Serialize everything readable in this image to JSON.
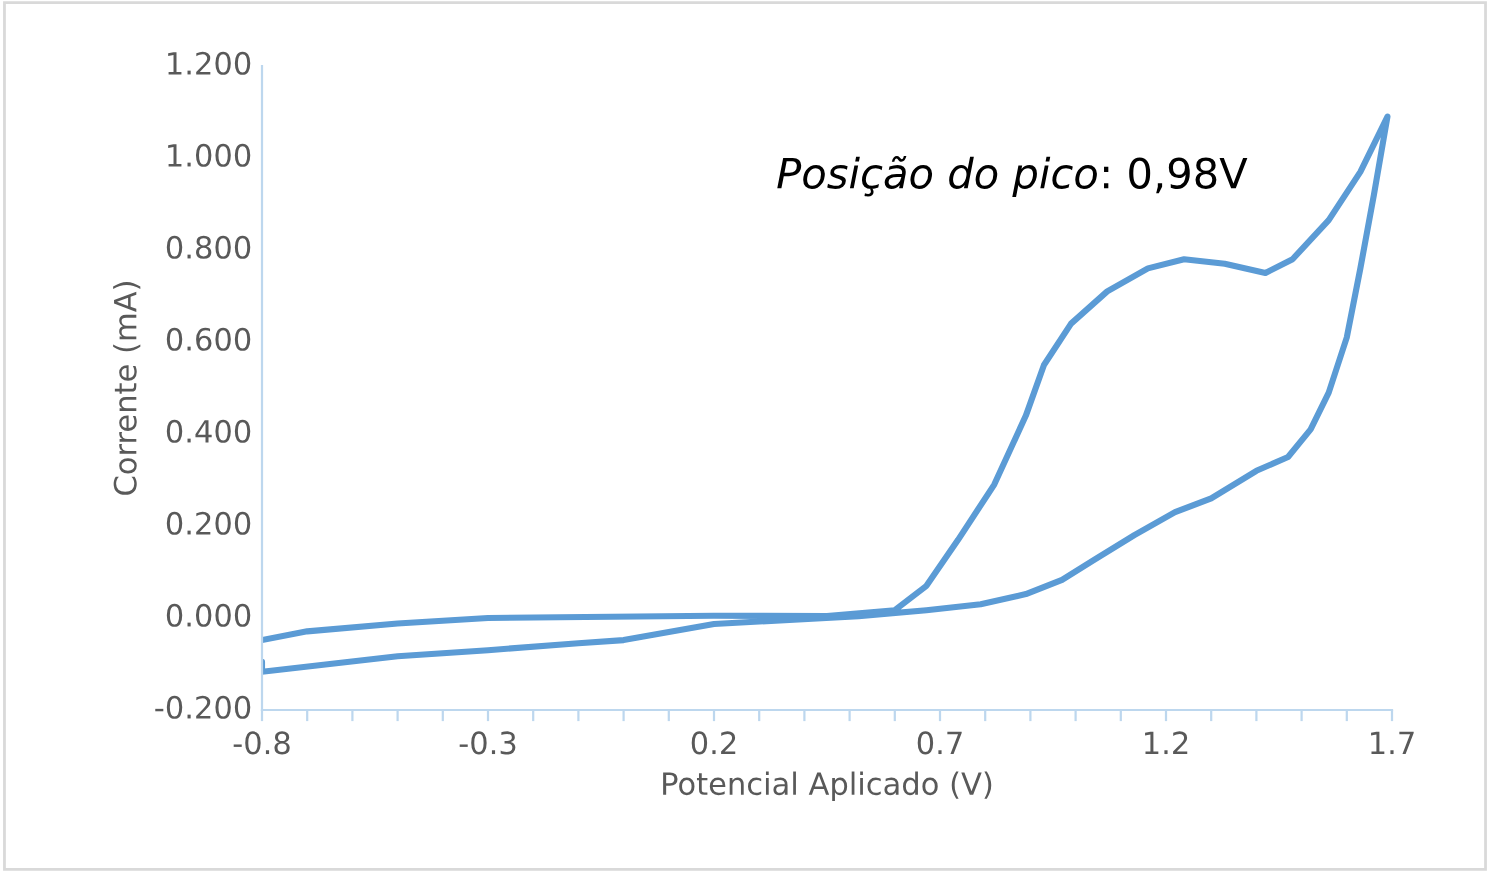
{
  "chart_data": {
    "type": "line",
    "xlabel": "Potencial Aplicado (V)",
    "ylabel": "Corrente (mA)",
    "annotations": [
      "Posição do pico: 0,98V"
    ],
    "xlim": [
      -0.8,
      1.7
    ],
    "xticks": [
      -0.8,
      {
        "value": -0.7,
        "label": null
      },
      {
        "value": -0.6,
        "label": null
      },
      {
        "value": -0.5,
        "label": null
      },
      {
        "value": -0.4,
        "label": null
      },
      -0.3,
      {
        "value": -0.2,
        "label": null
      },
      {
        "value": -0.1,
        "label": null
      },
      {
        "value": 0.0,
        "label": null
      },
      {
        "value": 0.1,
        "label": null
      },
      0.2,
      {
        "value": 0.3,
        "label": null
      },
      {
        "value": 0.4,
        "label": null
      },
      {
        "value": 0.5,
        "label": null
      },
      {
        "value": 0.6,
        "label": null
      },
      0.7,
      {
        "value": 0.8,
        "label": null
      },
      {
        "value": 0.9,
        "label": null
      },
      {
        "value": 1.0,
        "label": null
      },
      {
        "value": 1.1,
        "label": null
      },
      1.2,
      {
        "value": 1.3,
        "label": null
      },
      {
        "value": 1.4,
        "label": null
      },
      {
        "value": 1.5,
        "label": null
      },
      {
        "value": 1.6,
        "label": null
      },
      1.7
    ],
    "ylim": [
      -0.2,
      1.2
    ],
    "yticks": [
      {
        "value": -0.2,
        "label": "-0.200"
      },
      {
        "value": 0.0,
        "label": "0.000"
      },
      {
        "value": 0.2,
        "label": "0.200"
      },
      {
        "value": 0.4,
        "label": "0.400"
      },
      {
        "value": 0.6,
        "label": "0.600"
      },
      {
        "value": 0.8,
        "label": "0.800"
      },
      {
        "value": 1.0,
        "label": "1.000"
      },
      {
        "value": 1.2,
        "label": "1.200"
      }
    ],
    "grid": false,
    "legend": false,
    "marker": "none",
    "line_style": "solid",
    "series": [
      {
        "color": "#5b9bd5",
        "x": [
          -0.8,
          -0.7,
          -0.5,
          -0.3,
          0.2,
          0.45,
          0.6,
          0.67,
          0.74,
          0.82,
          0.89,
          0.93,
          0.99,
          1.07,
          1.16,
          1.24,
          1.33,
          1.42,
          1.48,
          1.56,
          1.63,
          1.69,
          1.66,
          1.63,
          1.6,
          1.56,
          1.52,
          1.47,
          1.4,
          1.3,
          1.22,
          1.13,
          1.04,
          0.97,
          0.89,
          0.79,
          0.67,
          0.52,
          0.2,
          0.0,
          -0.1,
          -0.3,
          -0.5,
          -0.8,
          -0.8
        ],
        "values": [
          -0.048,
          -0.029,
          -0.012,
          0.0,
          0.005,
          0.004,
          0.017,
          0.07,
          0.17,
          0.29,
          0.44,
          0.55,
          0.64,
          0.71,
          0.76,
          0.78,
          0.77,
          0.75,
          0.78,
          0.865,
          0.97,
          1.09,
          0.92,
          0.76,
          0.61,
          0.49,
          0.41,
          0.35,
          0.32,
          0.26,
          0.23,
          0.18,
          0.126,
          0.083,
          0.052,
          0.03,
          0.017,
          0.004,
          -0.013,
          -0.048,
          -0.055,
          -0.07,
          -0.083,
          -0.117,
          -0.095
        ]
      }
    ]
  }
}
